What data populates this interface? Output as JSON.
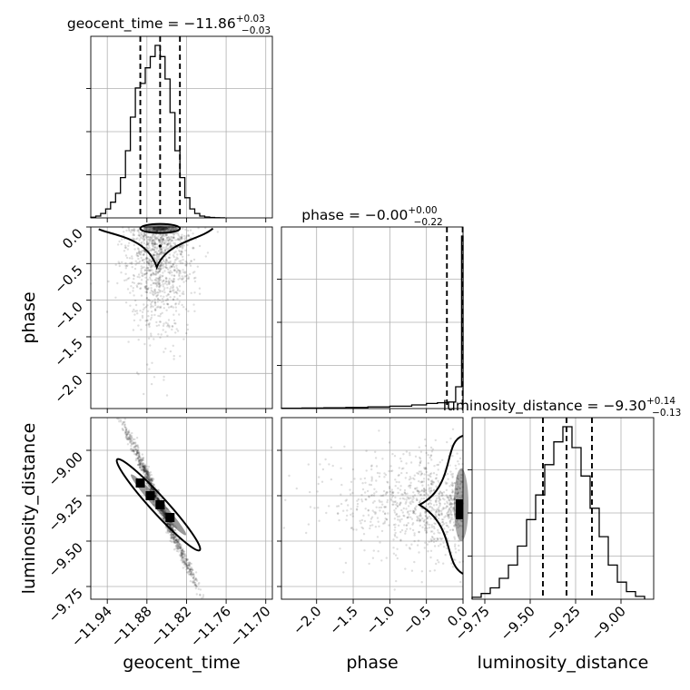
{
  "chart_data": {
    "type": "corner",
    "parameters": [
      "geocent_time",
      "phase",
      "luminosity_distance"
    ],
    "titles": [
      {
        "name": "geocent_time = ",
        "median": "−11.86",
        "plus": "+0.03",
        "minus": "−0.03"
      },
      {
        "name": "phase = ",
        "median": "−0.00",
        "plus": "+0.00",
        "minus": "−0.22"
      },
      {
        "name": "luminosity_distance = ",
        "median": "−9.30",
        "plus": "+0.14",
        "minus": "−0.13"
      }
    ],
    "ranges": {
      "geocent_time": [
        -11.965,
        -11.69
      ],
      "phase": [
        -2.48,
        0.0
      ],
      "luminosity_distance": [
        -9.82,
        -8.82
      ]
    },
    "ticks": {
      "geocent_time": {
        "values": [
          -11.94,
          -11.88,
          -11.82,
          -11.76,
          -11.7
        ],
        "labels": [
          "−11.94",
          "−11.88",
          "−11.82",
          "−11.76",
          "−11.70"
        ]
      },
      "phase": {
        "values": [
          -2.0,
          -1.5,
          -1.0,
          -0.5,
          0.0
        ],
        "labels": [
          "−2.0",
          "−1.5",
          "−1.0",
          "−0.5",
          "0.0"
        ]
      },
      "luminosity_distance": {
        "values": [
          -9.75,
          -9.5,
          -9.25,
          -9.0
        ],
        "labels": [
          "−9.75",
          "−9.50",
          "−9.25",
          "−9.00"
        ]
      }
    },
    "quantiles": {
      "geocent_time": [
        -11.89,
        -11.86,
        -11.83
      ],
      "phase": [
        -0.22,
        -0.005
      ],
      "luminosity_distance": [
        -9.43,
        -9.3,
        -9.16
      ]
    },
    "histograms": {
      "geocent_time": {
        "edges": [
          -11.965,
          -11.9575,
          -11.95,
          -11.9425,
          -11.935,
          -11.9275,
          -11.92,
          -11.9125,
          -11.905,
          -11.8975,
          -11.89,
          -11.8825,
          -11.875,
          -11.8675,
          -11.86,
          -11.8525,
          -11.845,
          -11.8375,
          -11.83,
          -11.8225,
          -11.815,
          -11.8075,
          -11.8,
          -11.7925,
          -11.785,
          -11.7775,
          -11.77,
          -11.7625
        ],
        "counts": [
          0.3,
          0.8,
          2,
          4,
          7,
          11,
          18,
          30,
          45,
          58,
          60,
          67,
          72,
          77,
          72,
          62,
          47,
          30,
          18,
          9,
          4,
          2,
          0.8,
          0.4,
          0.2,
          0.1,
          0.05
        ]
      },
      "phase": {
        "edges": [
          -2.48,
          -2.2,
          -1.9,
          -1.6,
          -1.3,
          -1.0,
          -0.7,
          -0.5,
          -0.35,
          -0.2,
          -0.1,
          -0.02,
          0.0
        ],
        "counts": [
          0.2,
          0.3,
          0.4,
          0.6,
          0.9,
          1.3,
          2,
          2.8,
          3.2,
          3.6,
          12,
          95
        ]
      },
      "luminosity_distance": {
        "edges": [
          -9.82,
          -9.77,
          -9.72,
          -9.67,
          -9.62,
          -9.57,
          -9.52,
          -9.47,
          -9.42,
          -9.37,
          -9.32,
          -9.27,
          -9.22,
          -9.17,
          -9.12,
          -9.07,
          -9.02,
          -8.97,
          -8.92,
          -8.87
        ],
        "counts": [
          1,
          3,
          6,
          11,
          18,
          28,
          42,
          55,
          71,
          83,
          91,
          80,
          65,
          48,
          33,
          18,
          9,
          4,
          1.5
        ]
      }
    },
    "scatter_phase_vs_geocent": {
      "n": 1100,
      "x_mean": -11.86,
      "x_sd": 0.025,
      "y_tail": 0.55
    },
    "scatter_ld_vs_geocent": {
      "n": 1200,
      "slope": -8.0,
      "center": [
        -11.86,
        -9.3
      ],
      "x_sd": 0.03
    },
    "scatter_ld_vs_phase": {
      "n": 900,
      "y_mean": -9.3,
      "y_sd": 0.14
    },
    "axis_labels": {
      "x": [
        "geocent_time",
        "phase",
        "luminosity_distance"
      ],
      "y_row2": "phase",
      "y_row3": "luminosity_distance"
    },
    "grid": true
  }
}
